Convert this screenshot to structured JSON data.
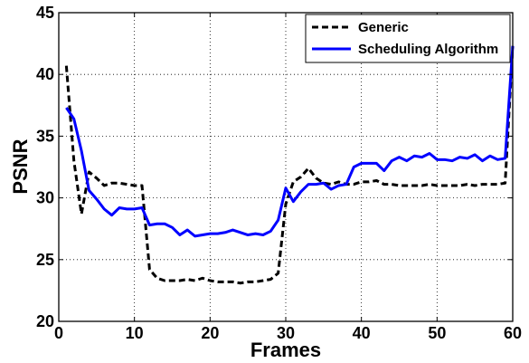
{
  "chart_data": {
    "type": "line",
    "title": "",
    "xlabel": "Frames",
    "ylabel": "PSNR",
    "xlim": [
      0,
      60
    ],
    "ylim": [
      20,
      45
    ],
    "xticks": [
      0,
      10,
      20,
      30,
      40,
      50,
      60
    ],
    "yticks": [
      20,
      25,
      30,
      35,
      40,
      45
    ],
    "grid": true,
    "legend_position": "top-right",
    "series": [
      {
        "name": "Generic",
        "color": "#000000",
        "style": "dashed",
        "x": [
          1,
          2,
          3,
          4,
          5,
          6,
          7,
          8,
          9,
          10,
          11,
          12,
          13,
          14,
          15,
          16,
          17,
          18,
          19,
          20,
          21,
          22,
          23,
          24,
          25,
          26,
          27,
          28,
          29,
          30,
          31,
          32,
          33,
          34,
          35,
          36,
          37,
          38,
          39,
          40,
          41,
          42,
          43,
          44,
          45,
          46,
          47,
          48,
          49,
          50,
          51,
          52,
          53,
          54,
          55,
          56,
          57,
          58,
          59,
          60
        ],
        "y": [
          40.7,
          33.0,
          28.7,
          32.1,
          31.6,
          31.0,
          31.2,
          31.2,
          31.1,
          31.0,
          31.0,
          24.2,
          23.5,
          23.3,
          23.3,
          23.3,
          23.4,
          23.3,
          23.5,
          23.3,
          23.2,
          23.2,
          23.2,
          23.1,
          23.2,
          23.2,
          23.3,
          23.4,
          23.9,
          29.5,
          31.3,
          31.7,
          32.4,
          31.6,
          31.2,
          31.1,
          31.3,
          31.1,
          31.1,
          31.3,
          31.3,
          31.4,
          31.1,
          31.1,
          31.0,
          31.0,
          31.0,
          31.0,
          31.1,
          31.0,
          31.0,
          31.0,
          31.0,
          31.1,
          31.0,
          31.1,
          31.1,
          31.1,
          31.2,
          42.3
        ]
      },
      {
        "name": "Scheduling Algorithm",
        "color": "#0000ff",
        "style": "solid",
        "x": [
          1,
          2,
          3,
          4,
          5,
          6,
          7,
          8,
          9,
          10,
          11,
          12,
          13,
          14,
          15,
          16,
          17,
          18,
          19,
          20,
          21,
          22,
          23,
          24,
          25,
          26,
          27,
          28,
          29,
          30,
          31,
          32,
          33,
          34,
          35,
          36,
          37,
          38,
          39,
          40,
          41,
          42,
          43,
          44,
          45,
          46,
          47,
          48,
          49,
          50,
          51,
          52,
          53,
          54,
          55,
          56,
          57,
          58,
          59,
          60
        ],
        "y": [
          37.3,
          36.4,
          33.8,
          30.6,
          29.9,
          29.1,
          28.6,
          29.2,
          29.1,
          29.1,
          29.2,
          27.8,
          27.9,
          27.9,
          27.6,
          27.0,
          27.4,
          26.9,
          27.0,
          27.1,
          27.1,
          27.2,
          27.4,
          27.2,
          27.0,
          27.1,
          27.0,
          27.3,
          28.2,
          30.8,
          29.7,
          30.5,
          31.1,
          31.1,
          31.2,
          30.7,
          31.0,
          31.1,
          32.5,
          32.8,
          32.8,
          32.8,
          32.2,
          33.0,
          33.3,
          33.0,
          33.4,
          33.3,
          33.6,
          33.1,
          33.1,
          33.0,
          33.3,
          33.2,
          33.5,
          33.0,
          33.4,
          33.1,
          33.2,
          42.3
        ]
      }
    ]
  }
}
